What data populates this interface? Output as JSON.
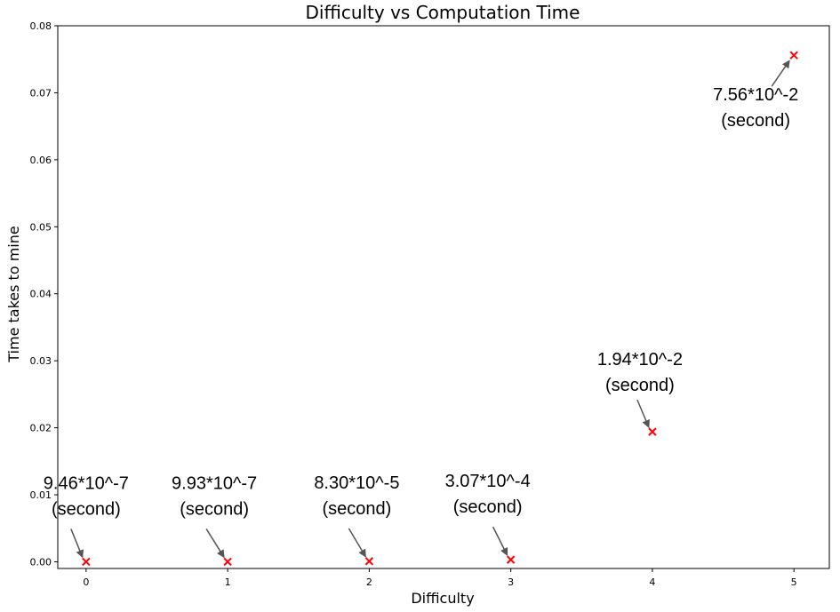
{
  "chart_data": {
    "type": "scatter",
    "title": "Difficulty vs Computation Time",
    "xlabel": "Difficulty",
    "ylabel": "Time takes to mine",
    "xlim": [
      -0.2,
      5.25
    ],
    "ylim": [
      -0.001,
      0.08
    ],
    "xticks": [
      "0",
      "1",
      "2",
      "3",
      "4",
      "5"
    ],
    "yticks": [
      "0.00",
      "0.01",
      "0.02",
      "0.03",
      "0.04",
      "0.05",
      "0.06",
      "0.07",
      "0.08"
    ],
    "grid": false,
    "marker": "x",
    "marker_color": "#ff0000",
    "points": [
      {
        "x": 0,
        "y": 9.46e-07
      },
      {
        "x": 1,
        "y": 9.93e-07
      },
      {
        "x": 2,
        "y": 8.3e-05
      },
      {
        "x": 3,
        "y": 0.000307
      },
      {
        "x": 4,
        "y": 0.0194
      },
      {
        "x": 5,
        "y": 0.0756
      }
    ],
    "annotations": [
      {
        "line1": "9.46*10^-7",
        "line2": "(second)"
      },
      {
        "line1": "9.93*10^-7",
        "line2": "(second)"
      },
      {
        "line1": "8.30*10^-5",
        "line2": "(second)"
      },
      {
        "line1": "3.07*10^-4",
        "line2": "(second)"
      },
      {
        "line1": "1.94*10^-2",
        "line2": "(second)"
      },
      {
        "line1": "7.56*10^-2",
        "line2": "(second)"
      }
    ]
  }
}
